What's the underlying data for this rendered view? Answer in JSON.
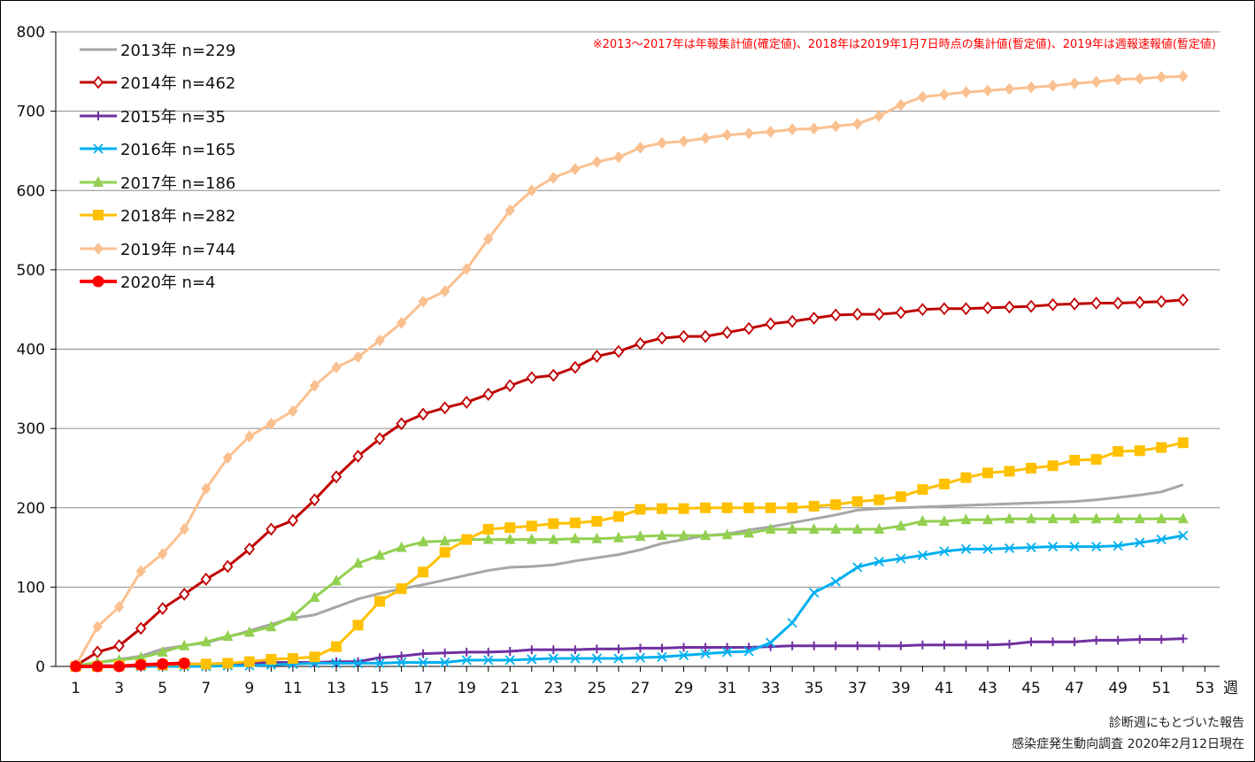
{
  "note": "※2013〜2017年は年報集計値(確定値)、2018年は2019年1月7日時点の集計値(暫定値)、2019年は週報速報値(暫定値)",
  "footer": {
    "line1": "診断週にもとづいた報告",
    "line2": "感染症発生動向調査 2020年2月12日現在"
  },
  "chart_data": {
    "type": "line",
    "xlabel": "週",
    "ylabel": "",
    "title": "",
    "xlim": [
      1,
      53
    ],
    "ylim": [
      0,
      800
    ],
    "x_ticks": [
      1,
      3,
      5,
      7,
      9,
      11,
      13,
      15,
      17,
      19,
      21,
      23,
      25,
      27,
      29,
      31,
      33,
      35,
      37,
      39,
      41,
      43,
      45,
      47,
      49,
      51,
      53
    ],
    "y_ticks": [
      0,
      100,
      200,
      300,
      400,
      500,
      600,
      700,
      800
    ],
    "grid": "horizontal",
    "legend": "top-left",
    "series": [
      {
        "name": "2013年 n=229",
        "color": "#a6a6a6",
        "marker": "none",
        "values": [
          0,
          5,
          9,
          13,
          22,
          26,
          30,
          37,
          45,
          53,
          61,
          65,
          75,
          85,
          92,
          98,
          103,
          109,
          115,
          121,
          125,
          126,
          128,
          133,
          137,
          141,
          147,
          155,
          160,
          165,
          167,
          172,
          176,
          181,
          186,
          191,
          197,
          199,
          200,
          201,
          202,
          203,
          204,
          205,
          206,
          207,
          208,
          210,
          213,
          216,
          220,
          229
        ]
      },
      {
        "name": "2014年 n=462",
        "color": "#c00000",
        "marker": "diamond-open",
        "values": [
          1,
          18,
          26,
          48,
          73,
          91,
          110,
          126,
          148,
          173,
          184,
          210,
          239,
          265,
          287,
          306,
          318,
          326,
          333,
          343,
          354,
          364,
          367,
          377,
          391,
          397,
          407,
          414,
          416,
          416,
          421,
          426,
          432,
          435,
          439,
          443,
          444,
          444,
          446,
          450,
          451,
          451,
          452,
          453,
          454,
          456,
          457,
          458,
          458,
          459,
          460,
          462
        ]
      },
      {
        "name": "2015年 n=35",
        "color": "#7030a0",
        "marker": "plus",
        "values": [
          0,
          1,
          1,
          2,
          2,
          3,
          3,
          4,
          4,
          5,
          5,
          5,
          6,
          6,
          11,
          13,
          16,
          17,
          18,
          18,
          19,
          21,
          21,
          21,
          22,
          22,
          23,
          23,
          24,
          24,
          24,
          24,
          25,
          26,
          26,
          26,
          26,
          26,
          26,
          27,
          27,
          27,
          27,
          28,
          31,
          31,
          31,
          33,
          33,
          34,
          34,
          35
        ]
      },
      {
        "name": "2016年 n=165",
        "color": "#00b0f0",
        "marker": "x",
        "values": [
          0,
          0,
          0,
          0,
          0,
          0,
          0,
          1,
          1,
          2,
          3,
          4,
          4,
          4,
          4,
          5,
          5,
          5,
          8,
          8,
          8,
          9,
          10,
          10,
          10,
          10,
          11,
          12,
          14,
          16,
          18,
          19,
          30,
          55,
          93,
          107,
          125,
          132,
          136,
          140,
          145,
          148,
          148,
          149,
          150,
          151,
          151,
          151,
          152,
          156,
          160,
          165
        ]
      },
      {
        "name": "2017年 n=186",
        "color": "#92d050",
        "marker": "triangle",
        "values": [
          1,
          5,
          8,
          11,
          18,
          26,
          31,
          38,
          43,
          50,
          63,
          87,
          108,
          130,
          140,
          150,
          157,
          158,
          160,
          160,
          160,
          160,
          160,
          161,
          161,
          162,
          164,
          165,
          165,
          165,
          166,
          168,
          173,
          173,
          173,
          173,
          173,
          173,
          177,
          183,
          183,
          185,
          185,
          186,
          186,
          186,
          186,
          186,
          186,
          186,
          186,
          186
        ]
      },
      {
        "name": "2018年 n=282",
        "color": "#ffc000",
        "marker": "square",
        "values": [
          0,
          0,
          1,
          2,
          2,
          3,
          3,
          4,
          6,
          9,
          10,
          12,
          25,
          52,
          82,
          98,
          119,
          144,
          160,
          173,
          175,
          177,
          180,
          181,
          183,
          189,
          198,
          199,
          199,
          200,
          200,
          200,
          200,
          200,
          202,
          204,
          208,
          210,
          214,
          223,
          230,
          238,
          244,
          246,
          250,
          253,
          260,
          261,
          271,
          272,
          276,
          282
        ]
      },
      {
        "name": "2019年 n=744",
        "color": "#fac090",
        "marker": "diamond",
        "values": [
          1,
          50,
          75,
          120,
          142,
          173,
          224,
          263,
          290,
          306,
          322,
          354,
          377,
          390,
          411,
          433,
          460,
          473,
          501,
          539,
          575,
          600,
          616,
          627,
          636,
          642,
          654,
          660,
          662,
          666,
          670,
          672,
          674,
          677,
          678,
          681,
          684,
          694,
          708,
          718,
          721,
          724,
          726,
          728,
          730,
          732,
          735,
          737,
          740,
          741,
          743,
          744
        ]
      },
      {
        "name": "2020年 n=4",
        "color": "#ff0000",
        "marker": "circle",
        "values": [
          0,
          0,
          0,
          2,
          3,
          4
        ]
      }
    ]
  }
}
